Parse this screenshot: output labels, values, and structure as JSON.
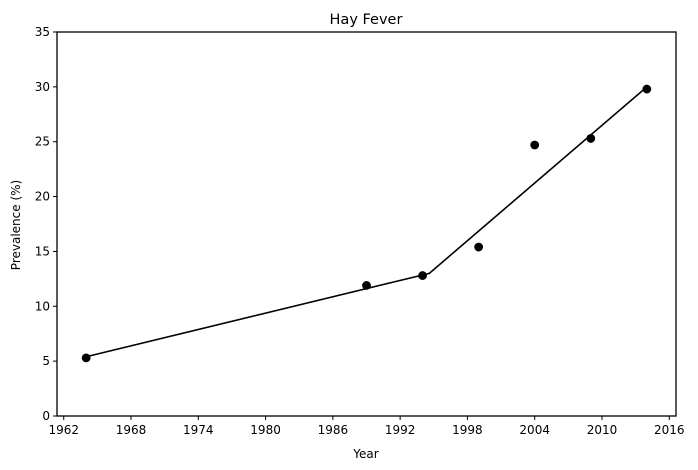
{
  "chart_data": {
    "type": "scatter",
    "title": "Hay Fever",
    "xlabel": "Year",
    "ylabel": "Prevalence (%)",
    "xlim": [
      1961.4,
      2016.6
    ],
    "ylim": [
      0,
      35
    ],
    "xticks": [
      1962,
      1968,
      1974,
      1980,
      1986,
      1992,
      1998,
      2004,
      2010,
      2016
    ],
    "yticks": [
      0,
      5,
      10,
      15,
      20,
      25,
      30,
      35
    ],
    "grid": false,
    "series": [
      {
        "type": "scatter",
        "color": "#000000",
        "x": [
          1964,
          1989,
          1994,
          1999,
          2004,
          2009,
          2014
        ],
        "y": [
          5.3,
          11.9,
          12.8,
          15.4,
          24.7,
          25.3,
          29.8
        ]
      },
      {
        "type": "line",
        "color": "#000000",
        "x": [
          1964,
          1994.6,
          2014
        ],
        "y": [
          5.4,
          13.0,
          30.0
        ]
      }
    ]
  }
}
